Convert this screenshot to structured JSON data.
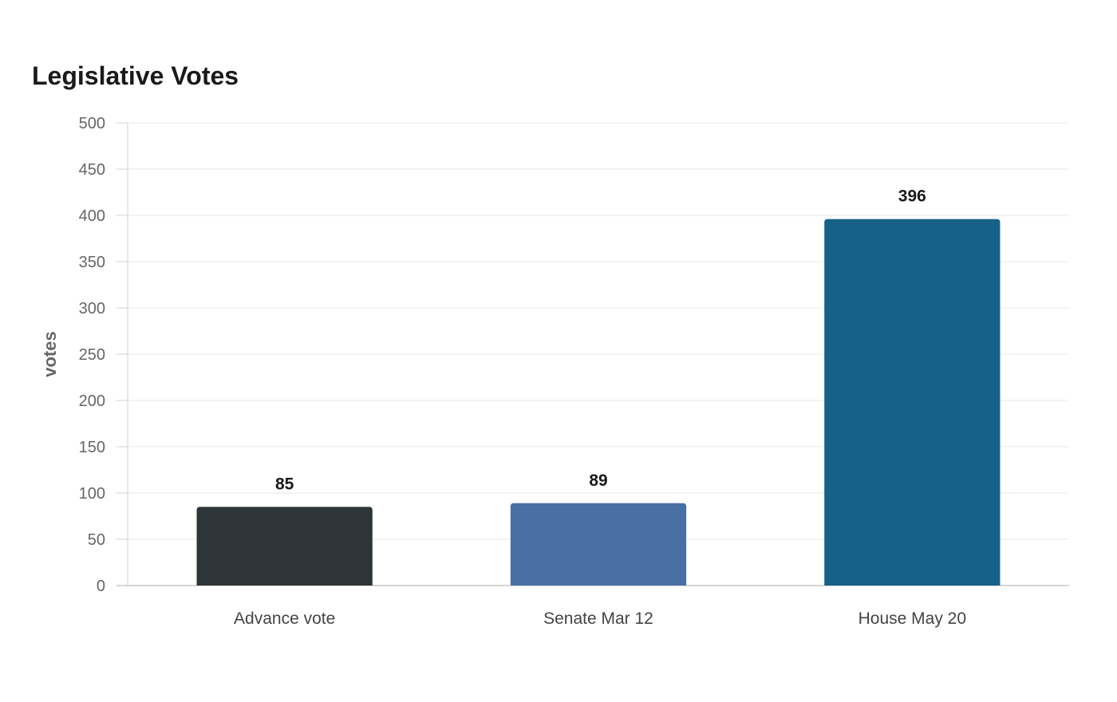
{
  "chart_data": {
    "type": "bar",
    "title": "Legislative Votes",
    "xlabel": "",
    "ylabel": "votes",
    "categories": [
      "Advance vote",
      "Senate Mar 12",
      "House May 20"
    ],
    "values": [
      85,
      89,
      396
    ],
    "colors": [
      "#2e3538",
      "#4a6fa5",
      "#176188"
    ],
    "ylim": [
      0,
      500
    ],
    "yticks": [
      0,
      50,
      100,
      150,
      200,
      250,
      300,
      350,
      400,
      450,
      500
    ],
    "grid": true,
    "legend": "none",
    "data_labels": true
  }
}
